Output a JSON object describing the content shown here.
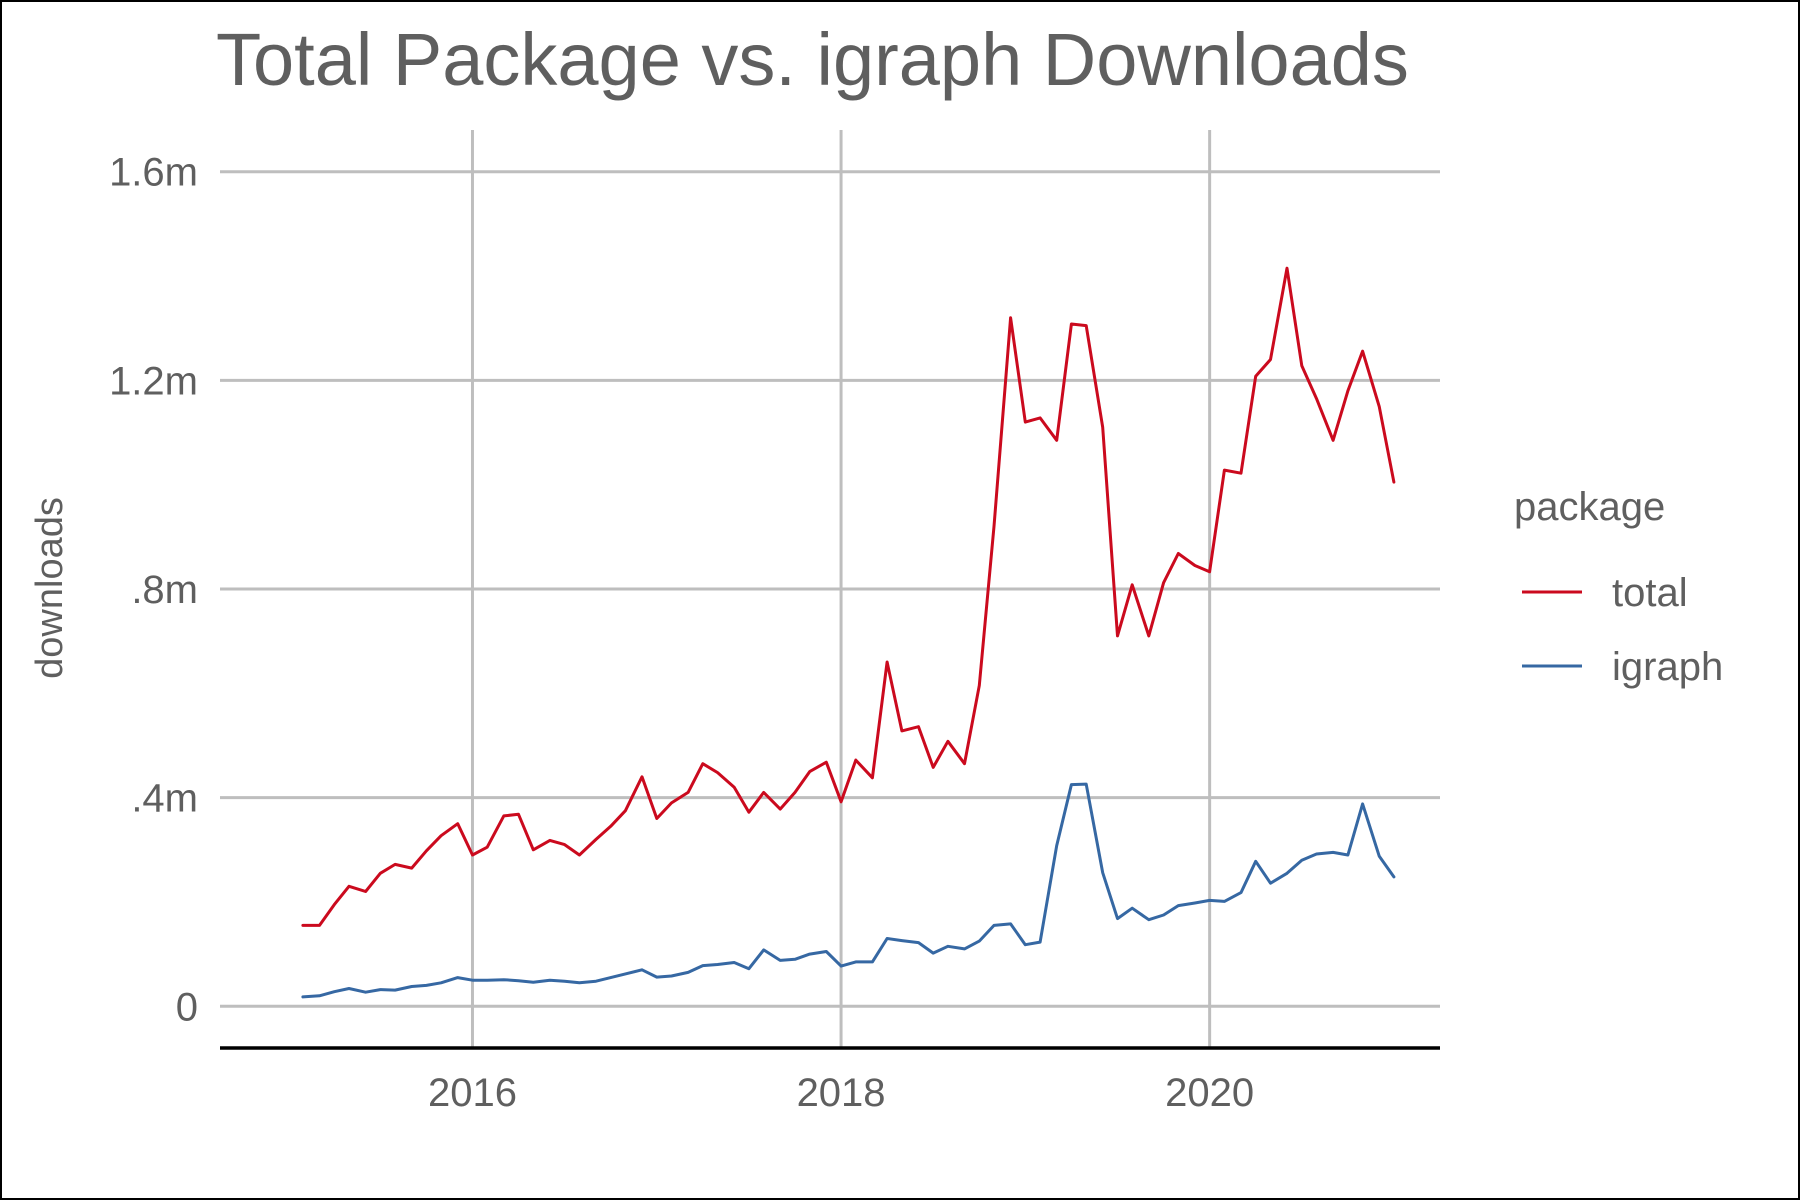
{
  "chart_data": {
    "type": "line",
    "title": "Total Package vs. igraph Downloads",
    "xlabel": "",
    "ylabel": "downloads",
    "x_ticks": [
      {
        "value": 2016,
        "label": "2016"
      },
      {
        "value": 2018,
        "label": "2018"
      },
      {
        "value": 2020,
        "label": "2020"
      }
    ],
    "y_ticks": [
      {
        "value": 0,
        "label": "0"
      },
      {
        "value": 400000,
        "label": ".4m"
      },
      {
        "value": 800000,
        "label": ".8m"
      },
      {
        "value": 1200000,
        "label": "1.2m"
      },
      {
        "value": 1600000,
        "label": "1.6m"
      }
    ],
    "xlim": [
      2014.63,
      2021.25
    ],
    "ylim": [
      -80000,
      1680000
    ],
    "grid": true,
    "legend": {
      "title": "package",
      "position": "right"
    },
    "colors": {
      "total": "#cb0a1e",
      "igraph": "#3668a3"
    },
    "series": [
      {
        "name": "total",
        "color": "#cb0a1e",
        "points": [
          [
            2015.08,
            155000
          ],
          [
            2015.17,
            155000
          ],
          [
            2015.25,
            195000
          ],
          [
            2015.33,
            230000
          ],
          [
            2015.42,
            220000
          ],
          [
            2015.5,
            255000
          ],
          [
            2015.58,
            272000
          ],
          [
            2015.67,
            265000
          ],
          [
            2015.75,
            298000
          ],
          [
            2015.83,
            327000
          ],
          [
            2015.92,
            350000
          ],
          [
            2016.0,
            290000
          ],
          [
            2016.08,
            305000
          ],
          [
            2016.17,
            365000
          ],
          [
            2016.25,
            368000
          ],
          [
            2016.33,
            300000
          ],
          [
            2016.42,
            318000
          ],
          [
            2016.5,
            310000
          ],
          [
            2016.58,
            290000
          ],
          [
            2016.67,
            320000
          ],
          [
            2016.75,
            345000
          ],
          [
            2016.83,
            375000
          ],
          [
            2016.92,
            440000
          ],
          [
            2017.0,
            360000
          ],
          [
            2017.08,
            390000
          ],
          [
            2017.17,
            410000
          ],
          [
            2017.25,
            465000
          ],
          [
            2017.33,
            448000
          ],
          [
            2017.42,
            420000
          ],
          [
            2017.5,
            372000
          ],
          [
            2017.58,
            410000
          ],
          [
            2017.67,
            378000
          ],
          [
            2017.75,
            410000
          ],
          [
            2017.83,
            450000
          ],
          [
            2017.92,
            468000
          ],
          [
            2018.0,
            392000
          ],
          [
            2018.08,
            472000
          ],
          [
            2018.17,
            438000
          ],
          [
            2018.25,
            660000
          ],
          [
            2018.33,
            528000
          ],
          [
            2018.42,
            536000
          ],
          [
            2018.5,
            458000
          ],
          [
            2018.58,
            508000
          ],
          [
            2018.67,
            465000
          ],
          [
            2018.75,
            615000
          ],
          [
            2018.83,
            920000
          ],
          [
            2018.92,
            1320000
          ],
          [
            2019.0,
            1120000
          ],
          [
            2019.08,
            1128000
          ],
          [
            2019.17,
            1085000
          ],
          [
            2019.25,
            1308000
          ],
          [
            2019.33,
            1305000
          ],
          [
            2019.42,
            1110000
          ],
          [
            2019.5,
            710000
          ],
          [
            2019.58,
            808000
          ],
          [
            2019.67,
            710000
          ],
          [
            2019.75,
            812000
          ],
          [
            2019.83,
            868000
          ],
          [
            2019.92,
            845000
          ],
          [
            2020.0,
            833000
          ],
          [
            2020.08,
            1028000
          ],
          [
            2020.17,
            1022000
          ],
          [
            2020.25,
            1208000
          ],
          [
            2020.33,
            1240000
          ],
          [
            2020.42,
            1415000
          ],
          [
            2020.5,
            1228000
          ],
          [
            2020.58,
            1165000
          ],
          [
            2020.67,
            1085000
          ],
          [
            2020.75,
            1180000
          ],
          [
            2020.83,
            1256000
          ],
          [
            2020.92,
            1150000
          ],
          [
            2021.0,
            1005000
          ]
        ]
      },
      {
        "name": "igraph",
        "color": "#3668a3",
        "points": [
          [
            2015.08,
            18000
          ],
          [
            2015.17,
            20000
          ],
          [
            2015.25,
            28000
          ],
          [
            2015.33,
            34000
          ],
          [
            2015.42,
            27000
          ],
          [
            2015.5,
            32000
          ],
          [
            2015.58,
            31000
          ],
          [
            2015.67,
            38000
          ],
          [
            2015.75,
            40000
          ],
          [
            2015.83,
            45000
          ],
          [
            2015.92,
            55000
          ],
          [
            2016.0,
            50000
          ],
          [
            2016.08,
            50000
          ],
          [
            2016.17,
            51000
          ],
          [
            2016.25,
            49000
          ],
          [
            2016.33,
            46000
          ],
          [
            2016.42,
            50000
          ],
          [
            2016.5,
            48000
          ],
          [
            2016.58,
            45000
          ],
          [
            2016.67,
            48000
          ],
          [
            2016.75,
            55000
          ],
          [
            2016.83,
            62000
          ],
          [
            2016.92,
            70000
          ],
          [
            2017.0,
            56000
          ],
          [
            2017.08,
            58000
          ],
          [
            2017.17,
            65000
          ],
          [
            2017.25,
            78000
          ],
          [
            2017.33,
            80000
          ],
          [
            2017.42,
            84000
          ],
          [
            2017.5,
            72000
          ],
          [
            2017.58,
            108000
          ],
          [
            2017.67,
            88000
          ],
          [
            2017.75,
            90000
          ],
          [
            2017.83,
            100000
          ],
          [
            2017.92,
            105000
          ],
          [
            2018.0,
            77000
          ],
          [
            2018.08,
            85000
          ],
          [
            2018.17,
            85000
          ],
          [
            2018.25,
            130000
          ],
          [
            2018.33,
            126000
          ],
          [
            2018.42,
            122000
          ],
          [
            2018.5,
            102000
          ],
          [
            2018.58,
            115000
          ],
          [
            2018.67,
            110000
          ],
          [
            2018.75,
            125000
          ],
          [
            2018.83,
            155000
          ],
          [
            2018.92,
            158000
          ],
          [
            2019.0,
            118000
          ],
          [
            2019.08,
            123000
          ],
          [
            2019.17,
            308000
          ],
          [
            2019.25,
            425000
          ],
          [
            2019.33,
            426000
          ],
          [
            2019.42,
            256000
          ],
          [
            2019.5,
            168000
          ],
          [
            2019.58,
            188000
          ],
          [
            2019.67,
            166000
          ],
          [
            2019.75,
            175000
          ],
          [
            2019.83,
            193000
          ],
          [
            2019.92,
            198000
          ],
          [
            2020.0,
            203000
          ],
          [
            2020.08,
            201000
          ],
          [
            2020.17,
            218000
          ],
          [
            2020.25,
            278000
          ],
          [
            2020.33,
            236000
          ],
          [
            2020.42,
            255000
          ],
          [
            2020.5,
            280000
          ],
          [
            2020.58,
            292000
          ],
          [
            2020.67,
            295000
          ],
          [
            2020.75,
            290000
          ],
          [
            2020.83,
            388000
          ],
          [
            2020.92,
            288000
          ],
          [
            2021.0,
            248000
          ]
        ]
      }
    ]
  }
}
